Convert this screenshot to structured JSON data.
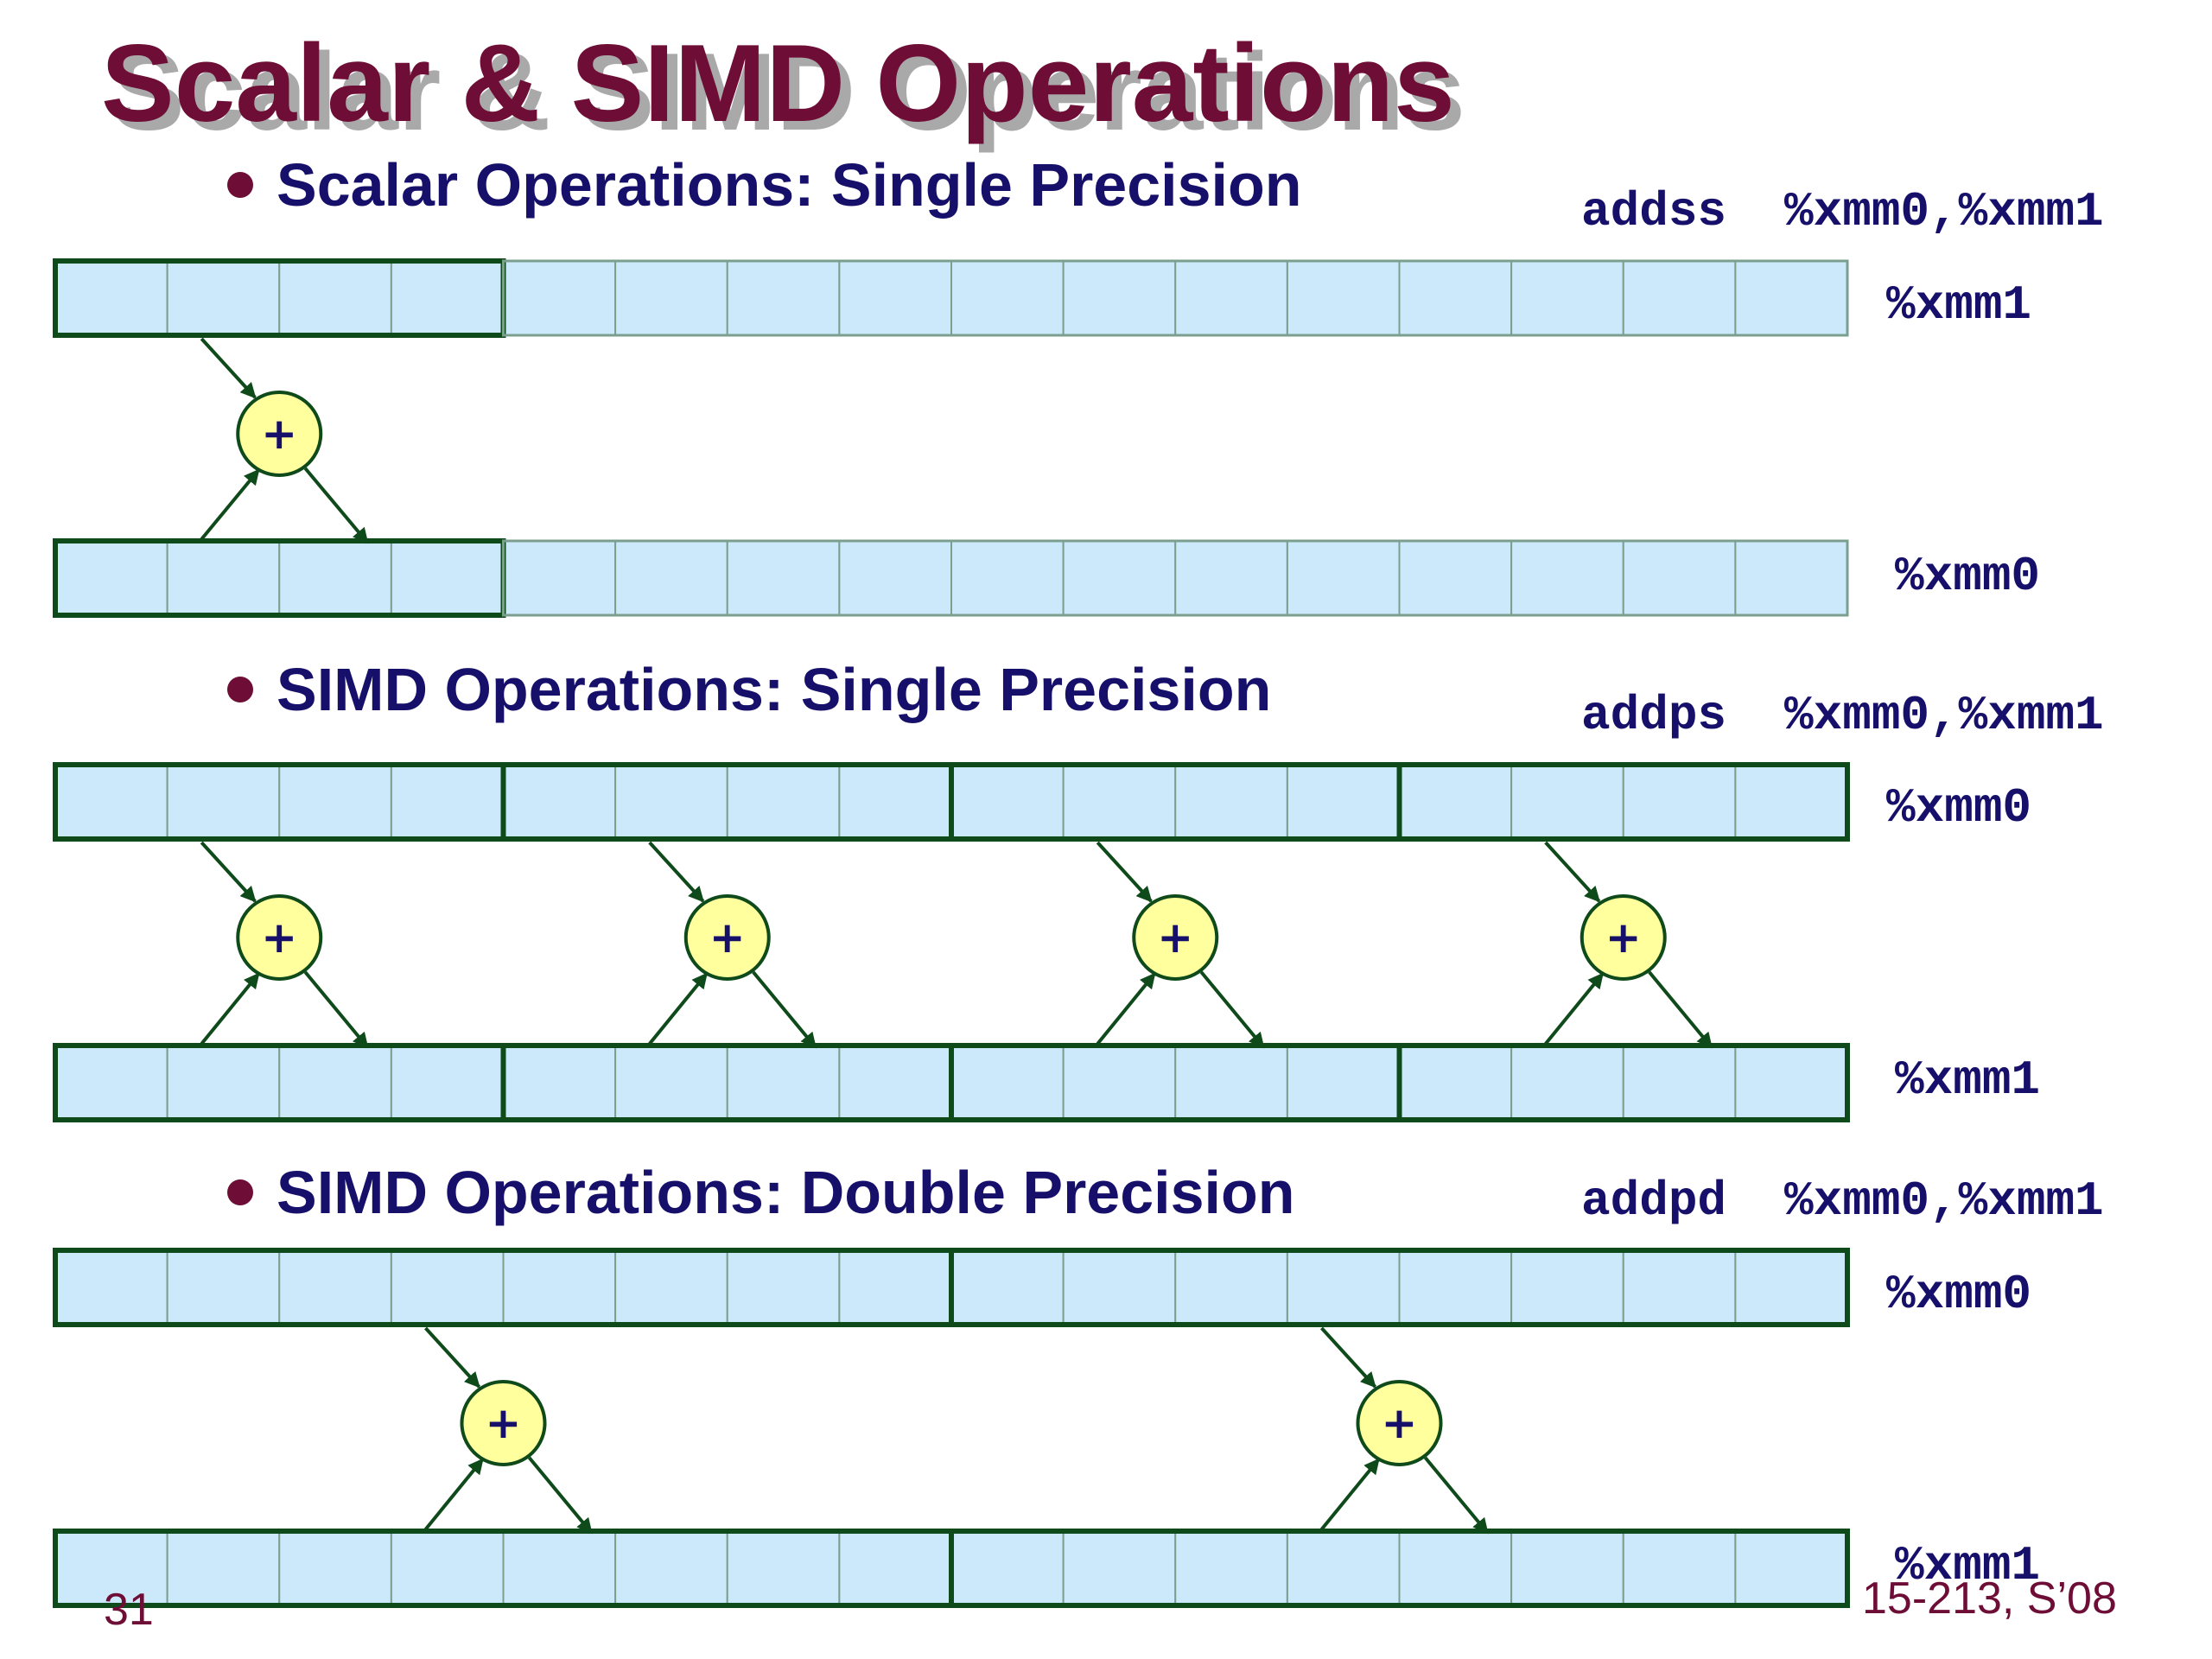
{
  "slide": {
    "title": "Scalar & SIMD Operations",
    "footer_course": "15-213, S’08",
    "footer_page": "31"
  },
  "colors": {
    "title": "#6e0d35",
    "title_shadow": "#a9a9a9",
    "heading": "#16106b",
    "bullet": "#6e0d35",
    "code": "#16106b",
    "cell_fill": "#cce9fb",
    "cell_line": "#7b9f8f",
    "group_border": "#0f4a1a",
    "arrow": "#0f4a1a",
    "adder_fill": "#ffff9e",
    "adder_border": "#0f4a1a",
    "footer": "#6e0d35"
  },
  "sections": [
    {
      "heading": "Scalar Operations: Single Precision",
      "instruction": {
        "mnemonic": "addss",
        "operands": "%xmm0,%xmm1"
      },
      "top_register": "%xmm1",
      "bottom_register": "%xmm0",
      "lanes": 4,
      "active_lanes": 1,
      "operator": "+"
    },
    {
      "heading": "SIMD Operations: Single Precision",
      "instruction": {
        "mnemonic": "addps",
        "operands": "%xmm0,%xmm1"
      },
      "top_register": "%xmm0",
      "bottom_register": "%xmm1",
      "lanes": 4,
      "active_lanes": 4,
      "operator": "+"
    },
    {
      "heading": "SIMD Operations: Double Precision",
      "instruction": {
        "mnemonic": "addpd",
        "operands": "%xmm0,%xmm1"
      },
      "top_register": "%xmm0",
      "bottom_register": "%xmm1",
      "lanes": 2,
      "active_lanes": 2,
      "operator": "+"
    }
  ]
}
